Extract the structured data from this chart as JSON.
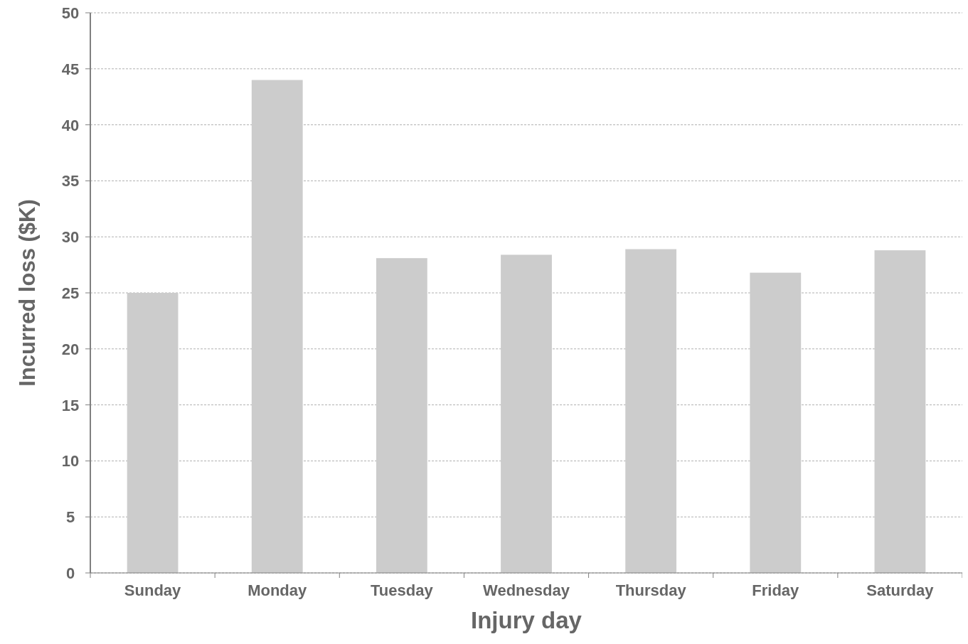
{
  "chart_data": {
    "type": "bar",
    "xlabel": "Injury day",
    "ylabel": "Incurred loss ($K)",
    "categories": [
      "Sunday",
      "Monday",
      "Tuesday",
      "Wednesday",
      "Thursday",
      "Friday",
      "Saturday"
    ],
    "values": [
      25,
      44,
      28.1,
      28.4,
      28.9,
      26.8,
      28.8
    ],
    "color": "#cccccc",
    "ylim": [
      0,
      50
    ],
    "yticks": [
      0,
      5,
      10,
      15,
      20,
      25,
      30,
      35,
      40,
      45,
      50
    ],
    "grid": "y"
  }
}
